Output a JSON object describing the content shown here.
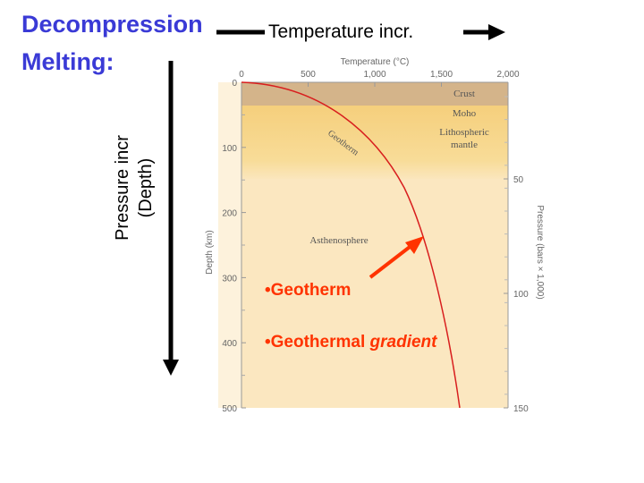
{
  "title": {
    "line1": "Decompression",
    "line2": "Melting:"
  },
  "temperature_arrow_label": "Temperature incr.",
  "pressure_arrow_label": {
    "line1": "Pressure incr",
    "line2": "(Depth)"
  },
  "chart": {
    "top_axis_title": "Temperature (°C)",
    "top_ticks": [
      "0",
      "500",
      "1,000",
      "1,500",
      "2,000"
    ],
    "left_axis_title": "Depth (km)",
    "left_ticks": [
      "0",
      "100",
      "200",
      "300",
      "400",
      "500"
    ],
    "right_axis_title": "Pressure (bars × 1,000)",
    "right_ticks": [
      "50",
      "100",
      "150"
    ],
    "layers": {
      "crust": "Crust",
      "moho": "Moho",
      "lithospheric_mantle_1": "Lithospheric",
      "lithospheric_mantle_2": "mantle",
      "asthenosphere": "Asthenosphere"
    },
    "curve_label": "Geotherm",
    "colors": {
      "crust": "#d4b48a",
      "lithosphere": "#f6d589",
      "asthenosphere": "#fbe7c0",
      "curve": "#d81e1e",
      "arrow": "#ff3300"
    }
  },
  "bullets": {
    "item1": "•Geotherm",
    "item2_prefix": "•Geothermal ",
    "item2_emphasis": "gradient"
  }
}
